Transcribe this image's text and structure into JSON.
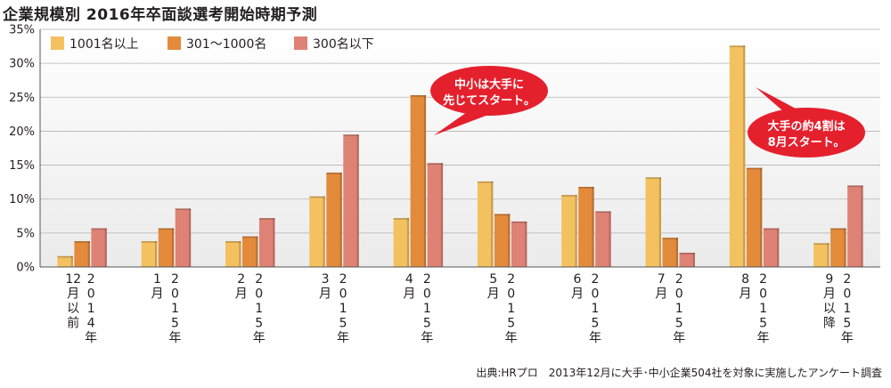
{
  "title": "企業規模別 2016年卒面談選考開始時期予測",
  "source": "出典:HRプロ　2013年12月に大手･中小企業504社を対象に実施したアンケート調査",
  "chart_data": {
    "type": "bar",
    "ylim": [
      0,
      35
    ],
    "yticks": [
      "0%",
      "5%",
      "10%",
      "15%",
      "20%",
      "25%",
      "30%",
      "35%"
    ],
    "grid": true,
    "legend_position": "top-left",
    "categories": [
      {
        "month": [
          "12",
          "月",
          "以",
          "前"
        ],
        "year": [
          "2",
          "0",
          "1",
          "4",
          "年"
        ]
      },
      {
        "month": [
          "1",
          "月"
        ],
        "year": [
          "2",
          "0",
          "1",
          "5",
          "年"
        ]
      },
      {
        "month": [
          "2",
          "月"
        ],
        "year": [
          "2",
          "0",
          "1",
          "5",
          "年"
        ]
      },
      {
        "month": [
          "3",
          "月"
        ],
        "year": [
          "2",
          "0",
          "1",
          "5",
          "年"
        ]
      },
      {
        "month": [
          "4",
          "月"
        ],
        "year": [
          "2",
          "0",
          "1",
          "5",
          "年"
        ]
      },
      {
        "month": [
          "5",
          "月"
        ],
        "year": [
          "2",
          "0",
          "1",
          "5",
          "年"
        ]
      },
      {
        "month": [
          "6",
          "月"
        ],
        "year": [
          "2",
          "0",
          "1",
          "5",
          "年"
        ]
      },
      {
        "month": [
          "7",
          "月"
        ],
        "year": [
          "2",
          "0",
          "1",
          "5",
          "年"
        ]
      },
      {
        "month": [
          "8",
          "月"
        ],
        "year": [
          "2",
          "0",
          "1",
          "5",
          "年"
        ]
      },
      {
        "month": [
          "9",
          "月",
          "以",
          "降"
        ],
        "year": [
          "2",
          "0",
          "1",
          "5",
          "年"
        ]
      }
    ],
    "series": [
      {
        "name": "1001名以上",
        "color": "#f3c15f",
        "values": [
          1.6,
          3.8,
          3.8,
          10.4,
          7.2,
          12.6,
          10.6,
          13.2,
          32.6,
          3.5
        ]
      },
      {
        "name": "301～1000名",
        "color": "#e38a3b",
        "values": [
          3.8,
          5.7,
          4.5,
          13.9,
          25.3,
          7.8,
          11.8,
          4.3,
          14.6,
          5.7
        ]
      },
      {
        "name": "300名以下",
        "color": "#de8275",
        "values": [
          5.7,
          8.6,
          7.2,
          19.5,
          15.3,
          6.7,
          8.2,
          2.1,
          5.7,
          12.0
        ]
      }
    ],
    "annotations": [
      {
        "lines": [
          "中小は大手に",
          "先じてスタート。"
        ]
      },
      {
        "lines": [
          "大手の約4割は",
          "8月スタート。"
        ]
      }
    ]
  }
}
